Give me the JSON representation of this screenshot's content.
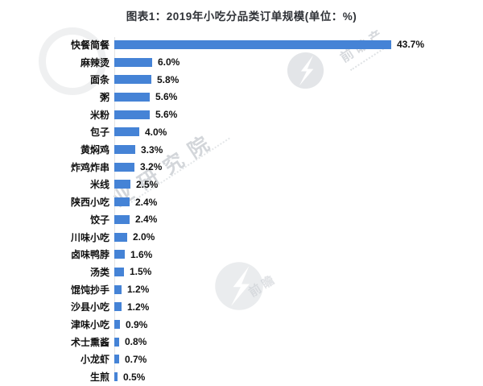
{
  "title": "图表1：2019年小吃分品类订单规模(单位：%)",
  "watermark": {
    "brand": "前瞻产业研究院",
    "tile1_text": "前瞻产",
    "tile2_text": "业研究院",
    "tile3_text": "前瞻",
    "color": "#c9cdd2"
  },
  "chart_data": {
    "type": "bar",
    "orientation": "horizontal",
    "title": "图表1：2019年小吃分品类订单规模(单位：%)",
    "unit": "%",
    "bar_color": "#4583d6",
    "xlim": [
      0,
      45
    ],
    "grid": false,
    "legend": false,
    "categories": [
      "快餐简餐",
      "麻辣烫",
      "面条",
      "粥",
      "米粉",
      "包子",
      "黄焖鸡",
      "炸鸡炸串",
      "米线",
      "陕西小吃",
      "饺子",
      "川味小吃",
      "卤味鸭脖",
      "汤类",
      "馄饨抄手",
      "沙县小吃",
      "津味小吃",
      "术士熏酱",
      "小龙虾",
      "生煎"
    ],
    "values": [
      43.7,
      6.0,
      5.8,
      5.6,
      5.6,
      4.0,
      3.3,
      3.2,
      2.5,
      2.4,
      2.4,
      2.0,
      1.6,
      1.5,
      1.2,
      1.2,
      0.9,
      0.8,
      0.7,
      0.5
    ],
    "value_labels": [
      "43.7%",
      "6.0%",
      "5.8%",
      "5.6%",
      "5.6%",
      "4.0%",
      "3.3%",
      "3.2%",
      "2.5%",
      "2.4%",
      "2.4%",
      "2.0%",
      "1.6%",
      "1.5%",
      "1.2%",
      "1.2%",
      "0.9%",
      "0.8%",
      "0.7%",
      "0.5%"
    ]
  }
}
